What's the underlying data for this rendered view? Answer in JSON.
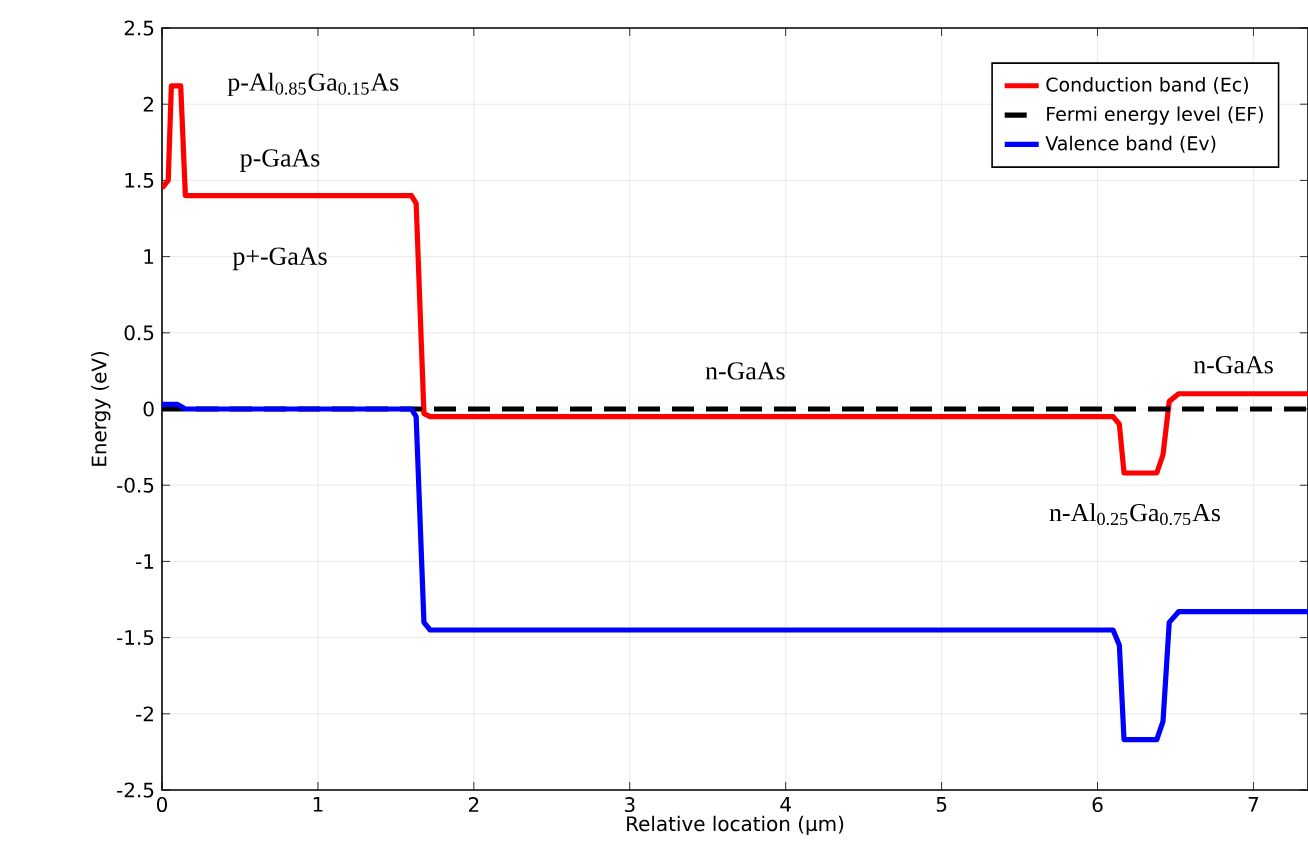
{
  "chart_data": {
    "type": "line",
    "xlabel": "Relative location (µm)",
    "ylabel": "Energy (eV)",
    "xlim": [
      0,
      7.35
    ],
    "ylim": [
      -2.5,
      2.5
    ],
    "xticks": [
      0,
      1,
      2,
      3,
      4,
      5,
      6,
      7
    ],
    "yticks": [
      -2.5,
      -2,
      -1.5,
      -1,
      -0.5,
      0,
      0.5,
      1,
      1.5,
      2,
      2.5
    ],
    "grid": true,
    "legend": "top right",
    "marker": "none",
    "series": [
      {
        "name": "Conduction band (Ec)",
        "color": "#ff0000",
        "line_style": "solid",
        "x": [
          0,
          0.04,
          0.06,
          0.12,
          0.15,
          1.6,
          1.63,
          1.68,
          1.72,
          6.1,
          6.14,
          6.17,
          6.38,
          6.42,
          6.46,
          6.52,
          7.35
        ],
        "values": [
          1.45,
          1.5,
          2.12,
          2.12,
          1.4,
          1.4,
          1.35,
          -0.03,
          -0.05,
          -0.05,
          -0.1,
          -0.42,
          -0.42,
          -0.3,
          0.05,
          0.1,
          0.1
        ]
      },
      {
        "name": "Fermi energy level (EF)",
        "color": "#000000",
        "line_style": "dashed",
        "x": [
          0,
          7.35
        ],
        "values": [
          0,
          0
        ]
      },
      {
        "name": "Valence band (Ev)",
        "color": "#0000ff",
        "line_style": "solid",
        "x": [
          0,
          0.1,
          0.15,
          1.6,
          1.63,
          1.68,
          1.72,
          6.1,
          6.14,
          6.17,
          6.38,
          6.42,
          6.46,
          6.52,
          7.35
        ],
        "values": [
          0.03,
          0.03,
          0,
          0,
          -0.05,
          -1.4,
          -1.45,
          -1.45,
          -1.55,
          -2.17,
          -2.17,
          -2.05,
          -1.4,
          -1.33,
          -1.33
        ]
      }
    ],
    "annotations": [
      "p-Al$_{0.85}$Ga$_{0.15}$As",
      "p-GaAs",
      "p+-GaAs",
      "n-GaAs",
      "n-GaAs",
      "n-Al$_{0.25}$Ga$_{0.75}$As"
    ]
  }
}
